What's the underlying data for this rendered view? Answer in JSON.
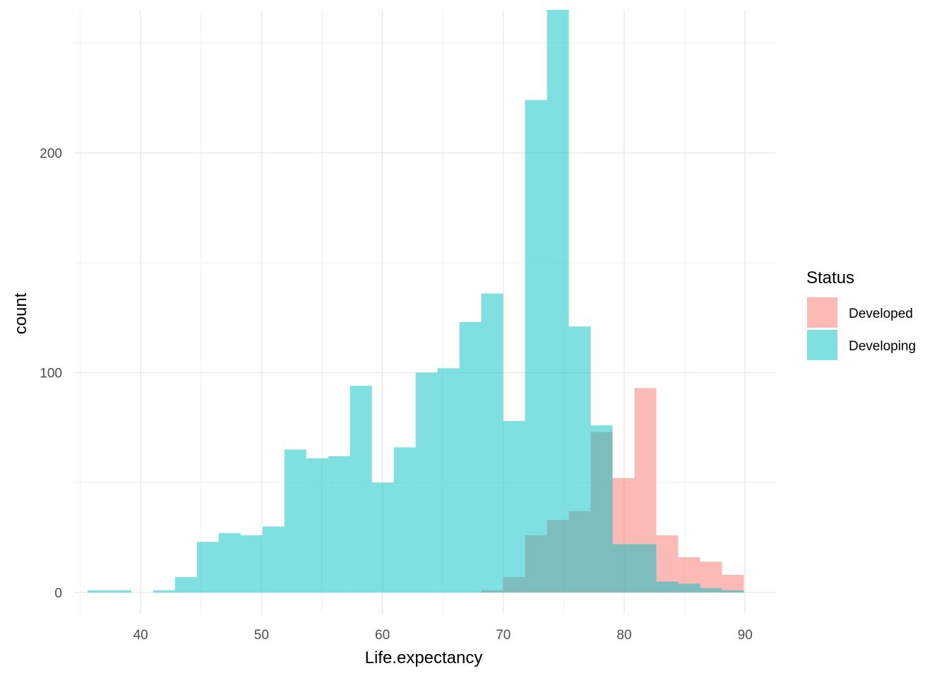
{
  "chart_data": {
    "type": "bar",
    "subtype": "overlapping-histogram",
    "xlabel": "Life.expectancy",
    "ylabel": "count",
    "xlim": [
      34.5,
      92.5
    ],
    "ylim": [
      -10,
      265
    ],
    "x_ticks": [
      40,
      50,
      60,
      70,
      80,
      90
    ],
    "y_ticks": [
      0,
      100,
      200
    ],
    "x_minor_gridlines": [
      35,
      45,
      55,
      65,
      75,
      85
    ],
    "y_minor_gridlines": [
      50,
      150,
      250
    ],
    "grid": true,
    "bin_start": 35.6,
    "bin_width": 1.81,
    "legend": {
      "title": "Status",
      "position": "right"
    },
    "series": [
      {
        "name": "Developing",
        "color": "#00BFC4",
        "opacity": 0.5,
        "values": [
          1,
          1,
          0,
          1,
          7,
          23,
          27,
          26,
          30,
          65,
          61,
          62,
          94,
          50,
          66,
          100,
          102,
          123,
          136,
          78,
          224,
          265,
          121,
          76,
          22,
          22,
          5,
          4,
          2,
          1
        ]
      },
      {
        "name": "Developed",
        "color": "#F8766D",
        "opacity": 0.5,
        "values": [
          0,
          0,
          0,
          0,
          0,
          0,
          0,
          0,
          0,
          0,
          0,
          0,
          0,
          0,
          0,
          0,
          0,
          0,
          1,
          7,
          26,
          33,
          37,
          73,
          52,
          93,
          26,
          16,
          14,
          8
        ]
      }
    ]
  }
}
